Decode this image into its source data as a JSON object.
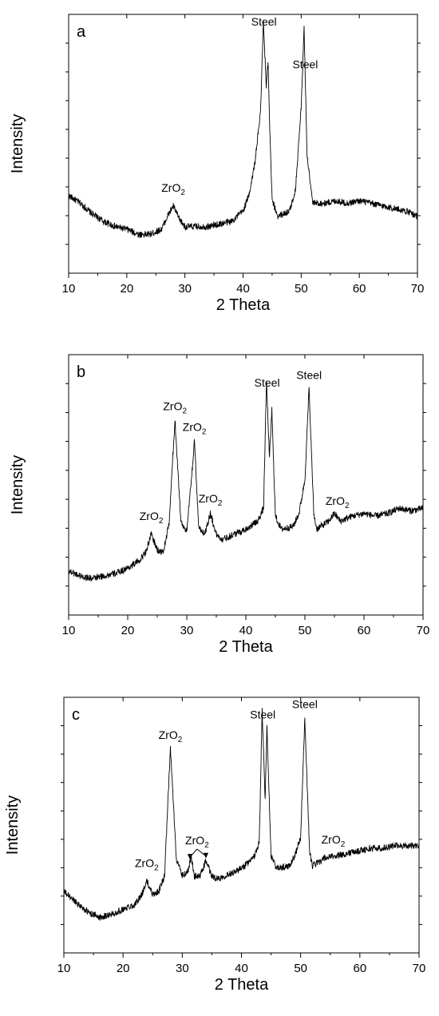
{
  "chart_data": [
    {
      "type": "line",
      "panel_label": "a",
      "xlabel": "2 Theta",
      "ylabel": "Intensity",
      "xlim": [
        10,
        70
      ],
      "ylim": [
        0,
        100
      ],
      "xticks": [
        "10",
        "20",
        "30",
        "40",
        "50",
        "60",
        "70"
      ],
      "y_tick_labels_shown": false,
      "series": [
        {
          "x": [
            10,
            12,
            14,
            16,
            18,
            20,
            22,
            24,
            26,
            27,
            28,
            29,
            30,
            32,
            34,
            36,
            38,
            40,
            41,
            42,
            43,
            43.5,
            44,
            44.3,
            44.6,
            45,
            46,
            48,
            49,
            50,
            50.5,
            51,
            52,
            54,
            56,
            58,
            60,
            62,
            64,
            66,
            68,
            70
          ],
          "y": [
            30,
            27,
            23,
            20,
            18,
            17,
            15,
            15,
            17,
            22,
            26,
            21,
            18,
            18,
            18,
            19,
            20,
            24,
            30,
            42,
            62,
            97,
            72,
            82,
            55,
            28,
            22,
            24,
            32,
            64,
            95,
            46,
            27,
            27,
            28,
            27,
            28,
            27,
            26,
            25,
            24,
            22
          ]
        }
      ],
      "annotations": [
        {
          "text": "ZrO",
          "sub": "2",
          "x": 28
        },
        {
          "text": "Steel",
          "x": 43.6
        },
        {
          "text": "Steel",
          "x": 50.7
        }
      ]
    },
    {
      "type": "line",
      "panel_label": "b",
      "xlabel": "2 Theta",
      "ylabel": "Intensity",
      "xlim": [
        10,
        70
      ],
      "ylim": [
        0,
        100
      ],
      "xticks": [
        "10",
        "20",
        "30",
        "40",
        "50",
        "60",
        "70"
      ],
      "y_tick_labels_shown": false,
      "series": [
        {
          "x": [
            10,
            12,
            14,
            16,
            18,
            20,
            22,
            23,
            24,
            25,
            26,
            27,
            28,
            29,
            30,
            31,
            31.3,
            32,
            33,
            34,
            35,
            36,
            38,
            40,
            42,
            43,
            43.5,
            44,
            44.4,
            45,
            46,
            48,
            49,
            50,
            50.7,
            51.5,
            52,
            54,
            55,
            56,
            58,
            60,
            62,
            64,
            66,
            68,
            70
          ],
          "y": [
            17,
            15,
            14,
            15,
            16,
            18,
            21,
            24,
            31,
            25,
            24,
            35,
            75,
            36,
            32,
            58,
            67,
            34,
            31,
            39,
            31,
            29,
            31,
            33,
            36,
            41,
            90,
            60,
            79,
            38,
            33,
            34,
            39,
            52,
            87,
            39,
            33,
            36,
            39,
            36,
            38,
            39,
            38,
            39,
            41,
            40,
            41
          ]
        }
      ],
      "annotations": [
        {
          "text": "ZrO",
          "sub": "2",
          "x": 24
        },
        {
          "text": "ZrO",
          "sub": "2",
          "x": 28
        },
        {
          "text": "ZrO",
          "sub": "2",
          "x": 31.3
        },
        {
          "text": "ZrO",
          "sub": "2",
          "x": 34
        },
        {
          "text": "Steel",
          "x": 43.6
        },
        {
          "text": "Steel",
          "x": 50.7
        },
        {
          "text": "ZrO",
          "sub": "2",
          "x": 55.5
        }
      ]
    },
    {
      "type": "line",
      "panel_label": "c",
      "xlabel": "2 Theta",
      "ylabel": "Intensity",
      "xlim": [
        10,
        70
      ],
      "ylim": [
        0,
        100
      ],
      "xticks": [
        "10",
        "20",
        "30",
        "40",
        "50",
        "60",
        "70"
      ],
      "y_tick_labels_shown": false,
      "series": [
        {
          "x": [
            10,
            12,
            14,
            16,
            18,
            20,
            22,
            23,
            24,
            25,
            26,
            27,
            28,
            29,
            30,
            31,
            31.5,
            32,
            33,
            34,
            35,
            36,
            38,
            40,
            42,
            43,
            43.5,
            44,
            44.3,
            45,
            46,
            48,
            49,
            50,
            50.7,
            51.5,
            52,
            54,
            56,
            58,
            60,
            62,
            64,
            66,
            68,
            70
          ],
          "y": [
            24,
            20,
            16,
            14,
            15,
            17,
            19,
            22,
            28,
            23,
            24,
            30,
            80,
            37,
            30,
            32,
            38,
            30,
            30,
            36,
            30,
            29,
            31,
            33,
            37,
            43,
            95,
            60,
            88,
            38,
            33,
            34,
            38,
            45,
            92,
            40,
            34,
            37,
            38,
            39,
            40,
            41,
            41,
            42,
            42,
            42
          ]
        }
      ],
      "annotations": [
        {
          "text": "ZrO",
          "sub": "2",
          "x": 24
        },
        {
          "text": "ZrO",
          "sub": "2",
          "x": 28
        },
        {
          "text": "ZrO",
          "sub": "2",
          "x": 32.5
        },
        {
          "text": "Steel",
          "x": 43.6
        },
        {
          "text": "Steel",
          "x": 50.7
        },
        {
          "text": "ZrO",
          "sub": "2",
          "x": 55.5
        }
      ]
    }
  ]
}
